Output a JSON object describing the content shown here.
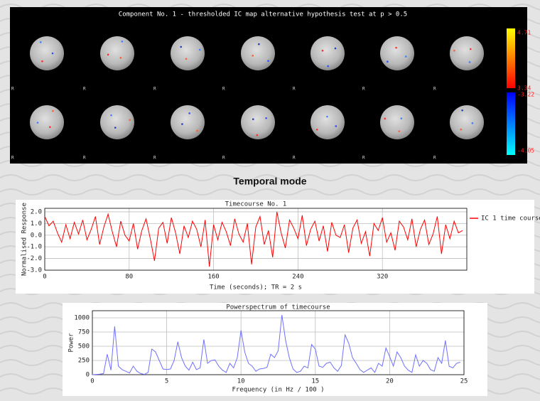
{
  "image_panel": {
    "title": "Component No. 1 - thresholded IC map   alternative hypothesis test at p > 0.5",
    "colorbar_labels": [
      4.71,
      3.34,
      -3.22,
      -4.05
    ],
    "orientation_label": "R"
  },
  "section_heading": "Temporal mode",
  "chart_data": [
    {
      "type": "line",
      "title": "Timecourse No. 1",
      "xlabel": "Time (seconds); TR = 2 s",
      "ylabel": "Normalised Response",
      "x": [
        0,
        4,
        8,
        12,
        16,
        20,
        24,
        28,
        32,
        36,
        40,
        44,
        48,
        52,
        56,
        60,
        64,
        68,
        72,
        76,
        80,
        84,
        88,
        92,
        96,
        100,
        104,
        108,
        112,
        116,
        120,
        124,
        128,
        132,
        136,
        140,
        144,
        148,
        152,
        156,
        160,
        164,
        168,
        172,
        176,
        180,
        184,
        188,
        192,
        196,
        200,
        204,
        208,
        212,
        216,
        220,
        224,
        228,
        232,
        236,
        240,
        244,
        248,
        252,
        256,
        260,
        264,
        268,
        272,
        276,
        280,
        284,
        288,
        292,
        296,
        300,
        304,
        308,
        312,
        316,
        320,
        324,
        328,
        332,
        336,
        340,
        344,
        348,
        352,
        356,
        360,
        364,
        368,
        372,
        376,
        380,
        384,
        388,
        392,
        396
      ],
      "series": [
        {
          "name": "IC 1 time course",
          "color": "#ff0000",
          "values": [
            1.6,
            0.8,
            1.2,
            0.2,
            -0.6,
            0.9,
            -0.3,
            1.1,
            0.1,
            1.3,
            -0.4,
            0.5,
            1.6,
            -0.8,
            0.7,
            1.8,
            0.3,
            -1.0,
            1.2,
            0.0,
            -0.5,
            1.0,
            -1.2,
            0.4,
            1.4,
            -0.3,
            -2.2,
            0.6,
            1.1,
            -0.7,
            1.5,
            0.2,
            -1.6,
            0.8,
            -0.2,
            1.2,
            0.5,
            -1.0,
            1.3,
            -2.7,
            0.9,
            -0.4,
            1.1,
            0.3,
            -0.9,
            1.4,
            0.1,
            -0.6,
            1.0,
            -2.5,
            0.7,
            1.6,
            -0.8,
            0.4,
            -1.9,
            2.0,
            0.2,
            -1.1,
            1.3,
            0.6,
            -0.3,
            1.7,
            -0.9,
            0.5,
            1.2,
            -0.5,
            0.8,
            -1.4,
            1.1,
            0.0,
            -0.2,
            0.9,
            -1.5,
            0.6,
            1.3,
            -0.7,
            0.3,
            -1.8,
            1.0,
            0.4,
            1.5,
            -0.6,
            0.2,
            -1.3,
            1.2,
            0.7,
            -0.4,
            1.4,
            -1.0,
            0.5,
            1.3,
            -0.8,
            0.1,
            1.6,
            -1.6,
            0.9,
            -0.3,
            1.2,
            0.2,
            0.4
          ]
        }
      ],
      "xlim": [
        0,
        400
      ],
      "xticks": [
        0,
        80,
        160,
        240,
        320
      ],
      "ylim": [
        -3,
        2.3
      ],
      "yticks": [
        {
          "value": 2,
          "label": "2.0"
        },
        {
          "value": 1,
          "label": "1.0"
        },
        {
          "value": 0,
          "label": "0.0"
        },
        {
          "value": -1,
          "label": "-1.0"
        },
        {
          "value": -2,
          "label": "-2.0"
        },
        {
          "value": -3,
          "label": "-3.0"
        }
      ],
      "grid": true,
      "legend": "right"
    },
    {
      "type": "line",
      "title": "Powerspectrum of timecourse",
      "xlabel": "Frequency (in Hz / 100 )",
      "ylabel": "Power",
      "x": [
        0,
        0.25,
        0.5,
        0.75,
        1,
        1.25,
        1.5,
        1.75,
        2,
        2.25,
        2.5,
        2.75,
        3,
        3.25,
        3.5,
        3.75,
        4,
        4.25,
        4.5,
        4.75,
        5,
        5.25,
        5.5,
        5.75,
        6,
        6.25,
        6.5,
        6.75,
        7,
        7.25,
        7.5,
        7.75,
        8,
        8.25,
        8.5,
        8.75,
        9,
        9.25,
        9.5,
        9.75,
        10,
        10.25,
        10.5,
        10.75,
        11,
        11.25,
        11.5,
        11.75,
        12,
        12.25,
        12.5,
        12.75,
        13,
        13.25,
        13.5,
        13.75,
        14,
        14.25,
        14.5,
        14.75,
        15,
        15.25,
        15.5,
        15.75,
        16,
        16.25,
        16.5,
        16.75,
        17,
        17.25,
        17.5,
        17.75,
        18,
        18.25,
        18.5,
        18.75,
        19,
        19.25,
        19.5,
        19.75,
        20,
        20.25,
        20.5,
        20.75,
        21,
        21.25,
        21.5,
        21.75,
        22,
        22.25,
        22.5,
        22.75,
        23,
        23.25,
        23.5,
        23.75,
        24,
        24.25,
        24.5,
        24.75
      ],
      "values": [
        0,
        5,
        10,
        20,
        360,
        80,
        850,
        150,
        90,
        60,
        30,
        150,
        60,
        20,
        5,
        40,
        450,
        400,
        250,
        100,
        90,
        100,
        250,
        580,
        300,
        150,
        80,
        220,
        90,
        120,
        620,
        200,
        250,
        260,
        150,
        80,
        40,
        200,
        120,
        300,
        780,
        400,
        200,
        150,
        60,
        100,
        110,
        130,
        360,
        300,
        420,
        1050,
        600,
        300,
        100,
        40,
        60,
        150,
        120,
        530,
        450,
        150,
        130,
        200,
        220,
        120,
        60,
        160,
        700,
        550,
        300,
        200,
        90,
        40,
        80,
        120,
        40,
        200,
        150,
        470,
        320,
        150,
        400,
        300,
        150,
        80,
        40,
        350,
        150,
        250,
        200,
        90,
        60,
        300,
        200,
        600,
        150,
        120,
        200,
        220
      ],
      "color": "#7070ff",
      "xlim": [
        0,
        25
      ],
      "xticks": [
        0,
        5,
        10,
        15,
        20,
        25
      ],
      "ylim": [
        0,
        1125
      ],
      "yticks": [
        0,
        250,
        500,
        750,
        1000
      ],
      "grid": true
    }
  ]
}
